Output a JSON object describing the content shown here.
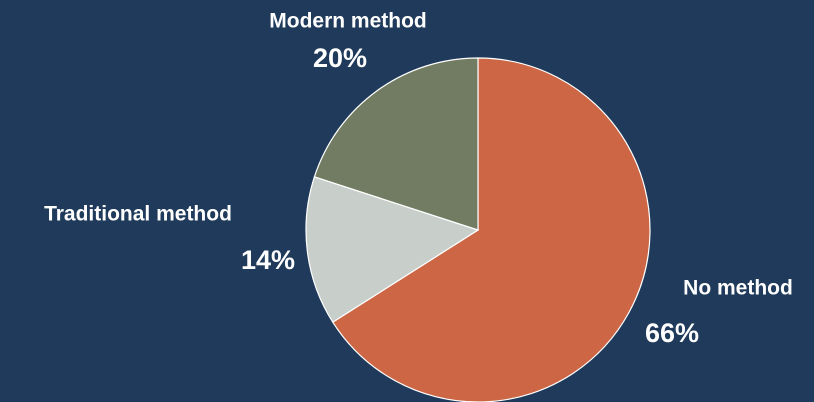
{
  "chart_data": {
    "type": "pie",
    "categories": [
      "No method",
      "Traditional method",
      "Modern method"
    ],
    "values": [
      66,
      14,
      20
    ],
    "value_labels": [
      "66%",
      "14%",
      "20%"
    ],
    "colors": [
      "#cc6644",
      "#c8cfcb",
      "#727c62"
    ]
  }
}
